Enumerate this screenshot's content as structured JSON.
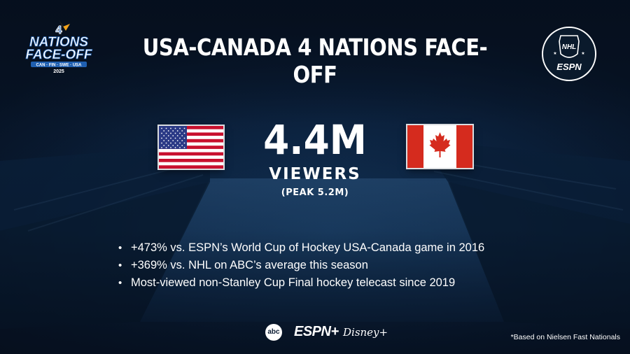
{
  "header": {
    "title": "USA-CANADA 4 NATIONS FACE-OFF",
    "event_logo": {
      "line1": "NATIONS",
      "line2": "FACE-OFF",
      "countries": "CAN · FIN · SWE · USA",
      "year": "2025",
      "number": "4"
    },
    "partner_logo": {
      "nhl_text": "NHL",
      "espn_text": "ESPN"
    }
  },
  "stats": {
    "viewers_value": "4.4M",
    "viewers_label": "VIEWERS",
    "peak_label": "(PEAK 5.2M)"
  },
  "flags": {
    "left": "USA",
    "right": "Canada"
  },
  "bullets": [
    "+473% vs. ESPN’s World Cup of Hockey USA-Canada game in 2016",
    "+369% vs. NHL on ABC’s average this season",
    "Most-viewed non-Stanley Cup Final hockey telecast since 2019"
  ],
  "bullet_marker": "•",
  "footer": {
    "abc": "abc",
    "espn_plus": "ESPN+",
    "disney_plus": "Disney+",
    "footnote": "*Based on Nielsen Fast Nationals"
  },
  "colors": {
    "background": "#0f2c4f",
    "text": "#ffffff",
    "usa_red": "#c8102e",
    "usa_blue": "#2b3a86",
    "canada_red": "#d52b1e",
    "logo_blue": "#1f5fb0",
    "logo_orange": "#f2a31b"
  }
}
